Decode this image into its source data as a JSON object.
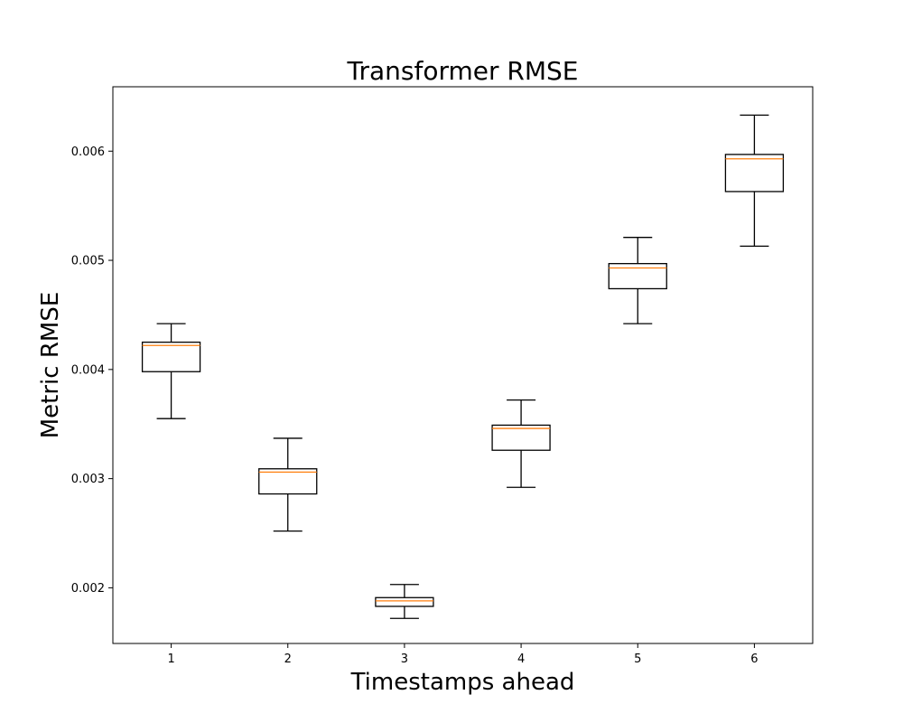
{
  "chart_data": {
    "type": "box",
    "title": "Transformer RMSE",
    "xlabel": "Timestamps ahead",
    "ylabel": "Metric RMSE",
    "categories": [
      "1",
      "2",
      "3",
      "4",
      "5",
      "6"
    ],
    "ylim": [
      0.00149,
      0.00659
    ],
    "yticks": [
      0.002,
      0.003,
      0.004,
      0.005,
      0.006
    ],
    "ytick_labels": [
      "0.002",
      "0.003",
      "0.004",
      "0.005",
      "0.006"
    ],
    "grid": false,
    "boxes": [
      {
        "category": "1",
        "whisker_low": 0.00355,
        "q1": 0.00398,
        "median": 0.00422,
        "q3": 0.00425,
        "whisker_high": 0.00442
      },
      {
        "category": "2",
        "whisker_low": 0.00252,
        "q1": 0.00286,
        "median": 0.00306,
        "q3": 0.00309,
        "whisker_high": 0.00337
      },
      {
        "category": "3",
        "whisker_low": 0.00172,
        "q1": 0.00183,
        "median": 0.00188,
        "q3": 0.00191,
        "whisker_high": 0.00203
      },
      {
        "category": "4",
        "whisker_low": 0.00292,
        "q1": 0.00326,
        "median": 0.00346,
        "q3": 0.00349,
        "whisker_high": 0.00372
      },
      {
        "category": "5",
        "whisker_low": 0.00442,
        "q1": 0.00474,
        "median": 0.00493,
        "q3": 0.00497,
        "whisker_high": 0.00521
      },
      {
        "category": "6",
        "whisker_low": 0.00513,
        "q1": 0.00563,
        "median": 0.00593,
        "q3": 0.00597,
        "whisker_high": 0.00633
      }
    ],
    "colors": {
      "box": "#000000",
      "median": "#ff7f0e"
    }
  }
}
